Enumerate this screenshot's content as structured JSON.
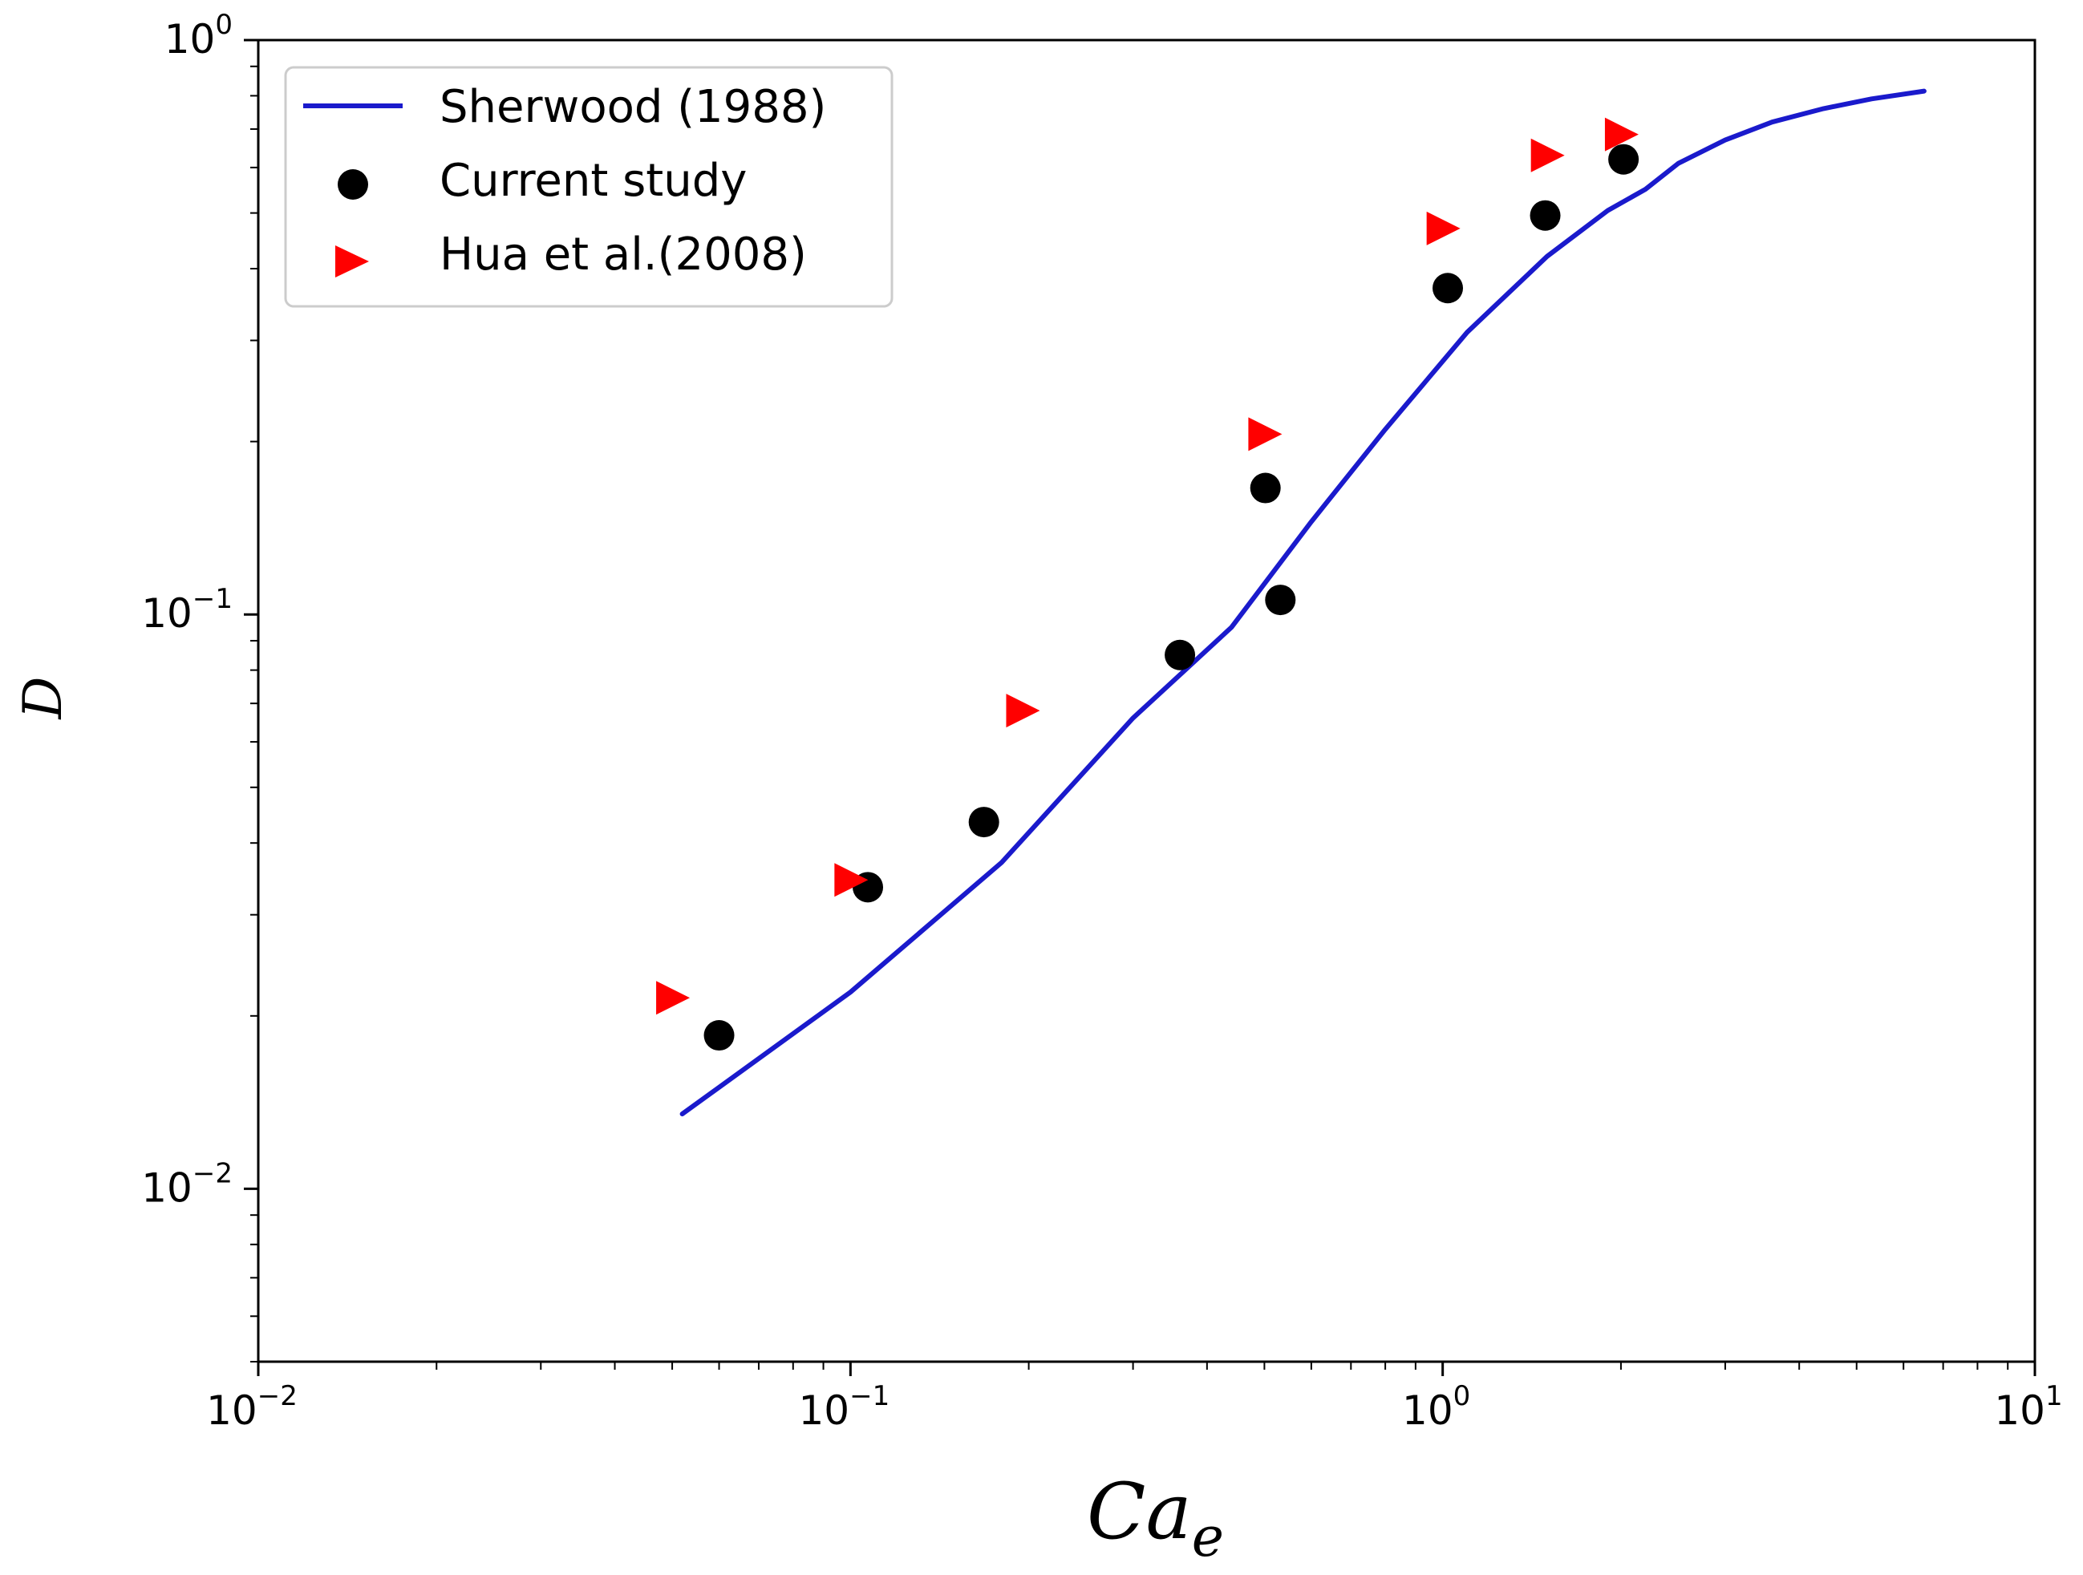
{
  "chart_data": {
    "type": "scatter",
    "title": "",
    "xlabel": "Ca",
    "xlabel_sub": "e",
    "ylabel": "D",
    "xscale": "log",
    "yscale": "log",
    "xlim": [
      0.01,
      10
    ],
    "ylim": [
      0.005,
      1
    ],
    "x_tick_labels": [
      {
        "value": 0.01,
        "base": "10",
        "exp": "−2"
      },
      {
        "value": 0.1,
        "base": "10",
        "exp": "−1"
      },
      {
        "value": 1,
        "base": "10",
        "exp": "0"
      },
      {
        "value": 10,
        "base": "10",
        "exp": "1"
      }
    ],
    "y_tick_labels": [
      {
        "value": 0.01,
        "base": "10",
        "exp": "−2"
      },
      {
        "value": 0.1,
        "base": "10",
        "exp": "−1"
      },
      {
        "value": 1,
        "base": "10",
        "exp": "0"
      }
    ],
    "legend_position": "upper-left",
    "series": [
      {
        "name": "Sherwood (1988)",
        "kind": "line",
        "color": "#1a1acc",
        "x": [
          0.052,
          0.1,
          0.18,
          0.3,
          0.44,
          0.6,
          0.8,
          1.1,
          1.5,
          1.9,
          2.2,
          2.5,
          3.0,
          3.6,
          4.4,
          5.3,
          6.5
        ],
        "y": [
          0.0135,
          0.022,
          0.037,
          0.066,
          0.095,
          0.145,
          0.21,
          0.31,
          0.42,
          0.505,
          0.55,
          0.61,
          0.67,
          0.72,
          0.76,
          0.79,
          0.815
        ]
      },
      {
        "name": "Current study",
        "kind": "scatter",
        "marker": "circle",
        "color": "#000000",
        "x": [
          0.06,
          0.107,
          0.168,
          0.36,
          0.502,
          0.532,
          1.02,
          1.49,
          2.02
        ],
        "y": [
          0.0185,
          0.0335,
          0.0435,
          0.085,
          0.166,
          0.106,
          0.37,
          0.495,
          0.62
        ]
      },
      {
        "name": "Hua et al.(2008)",
        "kind": "scatter",
        "marker": "triangle-right",
        "color": "#ff0000",
        "x": [
          0.05,
          0.1,
          0.195,
          0.5,
          1.0,
          1.5,
          2.0
        ],
        "y": [
          0.0215,
          0.0345,
          0.068,
          0.206,
          0.47,
          0.63,
          0.685
        ]
      }
    ]
  }
}
